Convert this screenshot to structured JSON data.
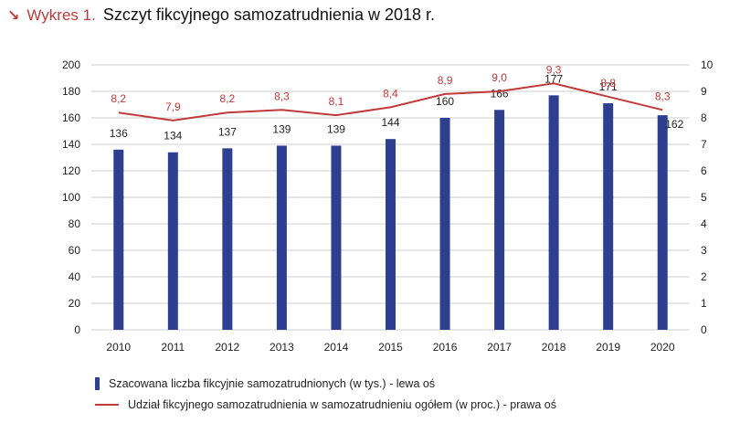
{
  "header": {
    "prefix": "Wykres 1.",
    "title": "Szczyt fikcyjnego samozatrudnienia w 2018 r.",
    "arrow_icon": "arrow-down-right-icon"
  },
  "colors": {
    "bar": "#2e3f8f",
    "line": "#c03a3a",
    "grid": "#cfcfcf",
    "accent": "#c03a3a"
  },
  "chart_data": {
    "type": "bar",
    "title": "Szczyt fikcyjnego samozatrudnienia w 2018 r.",
    "categories": [
      "2010",
      "2011",
      "2012",
      "2013",
      "2014",
      "2015",
      "2016",
      "2017",
      "2018",
      "2019",
      "2020"
    ],
    "series": [
      {
        "name": "Szacowana liczba fikcyjnie samozatrudnionych (w tys.) - lewa oś",
        "type": "bar",
        "axis": "left",
        "values": [
          136,
          134,
          137,
          139,
          139,
          144,
          160,
          166,
          177,
          171,
          162
        ]
      },
      {
        "name": "Udział fikcyjnego samozatrudnienia w samozatrudnieniu ogółem (w proc.) - prawa oś",
        "type": "line",
        "axis": "right",
        "values": [
          8.2,
          7.9,
          8.2,
          8.3,
          8.1,
          8.4,
          8.9,
          9.0,
          9.3,
          8.8,
          8.3
        ],
        "labels": [
          "8,2",
          "7,9",
          "8,2",
          "8,3",
          "8,1",
          "8,4",
          "8,9",
          "9,0",
          "9,3",
          "8,8",
          "8,3"
        ]
      }
    ],
    "y_left": {
      "lim": [
        0,
        200
      ],
      "ticks": [
        0,
        20,
        40,
        60,
        80,
        100,
        120,
        140,
        160,
        180,
        200
      ]
    },
    "y_right": {
      "lim": [
        0,
        10
      ],
      "ticks": [
        0,
        1,
        2,
        3,
        4,
        5,
        6,
        7,
        8,
        9,
        10
      ]
    },
    "grid": true,
    "legend_position": "bottom"
  }
}
